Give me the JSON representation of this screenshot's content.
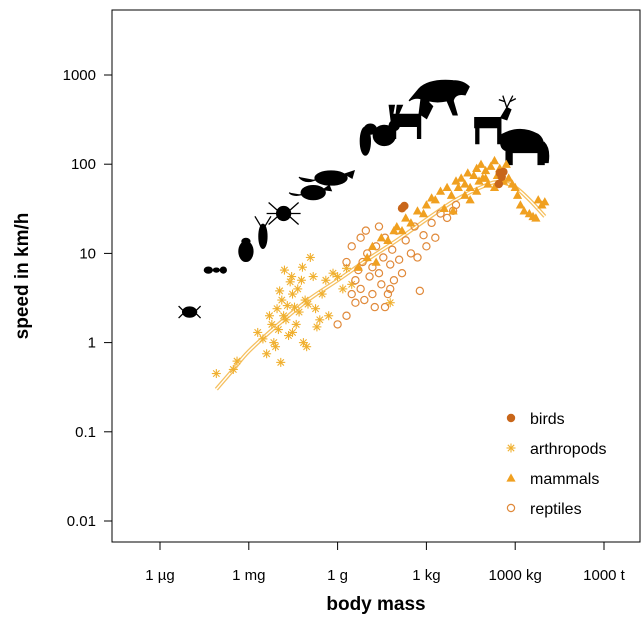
{
  "chart_data": {
    "type": "scatter",
    "title": "",
    "xlabel": "body mass",
    "ylabel": "speed in km/h",
    "x_scale": "log",
    "y_scale": "log",
    "x_unit": "g",
    "x_ticks": [
      {
        "value": 1e-06,
        "label": "1 µg"
      },
      {
        "value": 0.001,
        "label": "1 mg"
      },
      {
        "value": 1,
        "label": "1 g"
      },
      {
        "value": 1000,
        "label": "1 kg"
      },
      {
        "value": 1000000,
        "label": "1000 kg"
      },
      {
        "value": 1000000000,
        "label": "1000 t"
      }
    ],
    "y_ticks": [
      {
        "value": 0.01,
        "label": "0.01"
      },
      {
        "value": 0.1,
        "label": "0.1"
      },
      {
        "value": 1,
        "label": "1"
      },
      {
        "value": 10,
        "label": "10"
      },
      {
        "value": 100,
        "label": "100"
      },
      {
        "value": 1000,
        "label": "1000"
      }
    ],
    "xlim": [
      1e-08,
      10000000000
    ],
    "ylim": [
      0.005,
      5000
    ],
    "grid": false,
    "legend_position": "bottom-right",
    "colors": {
      "birds": "#c8661a",
      "arthropods": "#f0b030",
      "mammals": "#f0a020",
      "reptiles": "#e0893a",
      "fit_line": "#f5c060",
      "silhouettes": "#000000"
    },
    "series": [
      {
        "name": "birds",
        "marker": "filled-circle",
        "points": [
          [
            150,
            32
          ],
          [
            180,
            34
          ],
          [
            300000,
            80
          ],
          [
            350000,
            72
          ],
          [
            400000,
            82
          ],
          [
            280000,
            60
          ]
        ]
      },
      {
        "name": "arthropods",
        "marker": "asterisk",
        "points": [
          [
            8e-05,
            0.45
          ],
          [
            0.0003,
            0.5
          ],
          [
            0.0004,
            0.62
          ],
          [
            0.002,
            1.3
          ],
          [
            0.003,
            1.1
          ],
          [
            0.004,
            0.75
          ],
          [
            0.005,
            2.0
          ],
          [
            0.006,
            1.6
          ],
          [
            0.007,
            1.0
          ],
          [
            0.008,
            0.9
          ],
          [
            0.009,
            2.4
          ],
          [
            0.01,
            1.4
          ],
          [
            0.012,
            0.6
          ],
          [
            0.013,
            3.0
          ],
          [
            0.015,
            2.0
          ],
          [
            0.016,
            6.5
          ],
          [
            0.018,
            1.8
          ],
          [
            0.02,
            2.6
          ],
          [
            0.022,
            1.2
          ],
          [
            0.025,
            4.8
          ],
          [
            0.028,
            5.5
          ],
          [
            0.03,
            3.5
          ],
          [
            0.035,
            2.5
          ],
          [
            0.04,
            1.6
          ],
          [
            0.045,
            4.0
          ],
          [
            0.05,
            2.2
          ],
          [
            0.06,
            5.0
          ],
          [
            0.065,
            7.0
          ],
          [
            0.07,
            1.0
          ],
          [
            0.08,
            3.0
          ],
          [
            0.09,
            0.9
          ],
          [
            0.1,
            2.7
          ],
          [
            0.12,
            9.0
          ],
          [
            0.15,
            5.5
          ],
          [
            0.18,
            2.4
          ],
          [
            0.2,
            1.5
          ],
          [
            0.25,
            1.8
          ],
          [
            0.3,
            3.5
          ],
          [
            0.4,
            5.0
          ],
          [
            0.5,
            2.0
          ],
          [
            0.7,
            6.0
          ],
          [
            1.0,
            5.5
          ],
          [
            1.5,
            4.0
          ],
          [
            2.0,
            6.8
          ],
          [
            3.0,
            4.5
          ],
          [
            60,
            2.8
          ],
          [
            0.011,
            3.8
          ],
          [
            0.03,
            1.3
          ]
        ]
      },
      {
        "name": "mammals",
        "marker": "filled-triangle",
        "points": [
          [
            5,
            7
          ],
          [
            10,
            9
          ],
          [
            15,
            12
          ],
          [
            20,
            8
          ],
          [
            30,
            15
          ],
          [
            50,
            14
          ],
          [
            80,
            18
          ],
          [
            100,
            20
          ],
          [
            150,
            18
          ],
          [
            200,
            25
          ],
          [
            300,
            22
          ],
          [
            500,
            30
          ],
          [
            800,
            28
          ],
          [
            1000,
            35
          ],
          [
            1500,
            42
          ],
          [
            2000,
            40
          ],
          [
            3000,
            50
          ],
          [
            5000,
            55
          ],
          [
            7000,
            45
          ],
          [
            10000,
            65
          ],
          [
            12000,
            55
          ],
          [
            15000,
            70
          ],
          [
            20000,
            60
          ],
          [
            25000,
            80
          ],
          [
            30000,
            55
          ],
          [
            40000,
            75
          ],
          [
            50000,
            90
          ],
          [
            60000,
            65
          ],
          [
            70000,
            100
          ],
          [
            80000,
            70
          ],
          [
            100000,
            85
          ],
          [
            120000,
            60
          ],
          [
            150000,
            95
          ],
          [
            200000,
            110
          ],
          [
            250000,
            75
          ],
          [
            300000,
            90
          ],
          [
            400000,
            65
          ],
          [
            500000,
            100
          ],
          [
            600000,
            70
          ],
          [
            800000,
            60
          ],
          [
            1000000,
            55
          ],
          [
            1200000,
            45
          ],
          [
            1500000,
            35
          ],
          [
            2000000,
            30
          ],
          [
            3000000,
            28
          ],
          [
            4000000,
            26
          ],
          [
            5000000,
            25
          ],
          [
            6000000,
            40
          ],
          [
            8000000,
            35
          ],
          [
            10000000,
            38
          ],
          [
            30000,
            40
          ],
          [
            8000,
            30
          ],
          [
            4000,
            32
          ],
          [
            20000,
            45
          ],
          [
            50000,
            50
          ],
          [
            100000,
            70
          ],
          [
            200000,
            55
          ]
        ]
      },
      {
        "name": "reptiles",
        "marker": "open-circle",
        "points": [
          [
            1,
            1.6
          ],
          [
            2,
            2.0
          ],
          [
            3,
            3.5
          ],
          [
            4,
            5.0
          ],
          [
            5,
            6.5
          ],
          [
            6,
            4.0
          ],
          [
            7,
            8.0
          ],
          [
            8,
            3.0
          ],
          [
            10,
            10
          ],
          [
            12,
            5.5
          ],
          [
            15,
            7.0
          ],
          [
            18,
            2.5
          ],
          [
            20,
            12
          ],
          [
            25,
            6.0
          ],
          [
            30,
            4.5
          ],
          [
            35,
            9.0
          ],
          [
            40,
            15
          ],
          [
            50,
            3.5
          ],
          [
            60,
            7.5
          ],
          [
            70,
            11
          ],
          [
            80,
            5.0
          ],
          [
            100,
            18
          ],
          [
            120,
            8.5
          ],
          [
            150,
            6.0
          ],
          [
            200,
            14
          ],
          [
            300,
            10
          ],
          [
            400,
            20
          ],
          [
            500,
            9.0
          ],
          [
            600,
            3.8
          ],
          [
            800,
            16
          ],
          [
            1000,
            12
          ],
          [
            1500,
            22
          ],
          [
            2000,
            15
          ],
          [
            3000,
            28
          ],
          [
            5000,
            25
          ],
          [
            8000,
            30
          ],
          [
            10000,
            35
          ],
          [
            2,
            8.0
          ],
          [
            3,
            12
          ],
          [
            4,
            2.8
          ],
          [
            6,
            15
          ],
          [
            9,
            18
          ],
          [
            15,
            3.5
          ],
          [
            25,
            20
          ],
          [
            40,
            2.5
          ],
          [
            60,
            4.0
          ]
        ]
      }
    ],
    "fit_curve": {
      "label": "",
      "points": [
        [
          8e-05,
          0.3
        ],
        [
          0.0003,
          0.5
        ],
        [
          0.001,
          0.8
        ],
        [
          0.01,
          1.6
        ],
        [
          0.1,
          3.0
        ],
        [
          1,
          5.0
        ],
        [
          10,
          8.5
        ],
        [
          100,
          14
        ],
        [
          1000,
          24
        ],
        [
          10000,
          40
        ],
        [
          100000,
          58
        ],
        [
          300000,
          63
        ],
        [
          1000000,
          55
        ],
        [
          3000000,
          40
        ],
        [
          10000000,
          26
        ]
      ]
    },
    "silhouettes": [
      {
        "icon": "mite-icon",
        "mass": 1e-05,
        "speed": 2.2
      },
      {
        "icon": "ant-icon",
        "mass": 8e-05,
        "speed": 6.5
      },
      {
        "icon": "beetle-icon",
        "mass": 0.0008,
        "speed": 10
      },
      {
        "icon": "cockroach-icon",
        "mass": 0.003,
        "speed": 12
      },
      {
        "icon": "spider-icon",
        "mass": 0.015,
        "speed": 28
      },
      {
        "icon": "mouse-icon",
        "mass": 0.15,
        "speed": 48
      },
      {
        "icon": "rat-icon",
        "mass": 0.6,
        "speed": 70
      },
      {
        "icon": "ferret-icon",
        "mass": 8,
        "speed": 120
      },
      {
        "icon": "rabbit-icon",
        "mass": 35,
        "speed": 210
      },
      {
        "icon": "goat-icon",
        "mass": 250,
        "speed": 310
      },
      {
        "icon": "cheetah-icon",
        "mass": 5000,
        "speed": 600
      },
      {
        "icon": "deer-icon",
        "mass": 150000,
        "speed": 300
      },
      {
        "icon": "elephant-icon",
        "mass": 2000000,
        "speed": 150
      }
    ]
  }
}
